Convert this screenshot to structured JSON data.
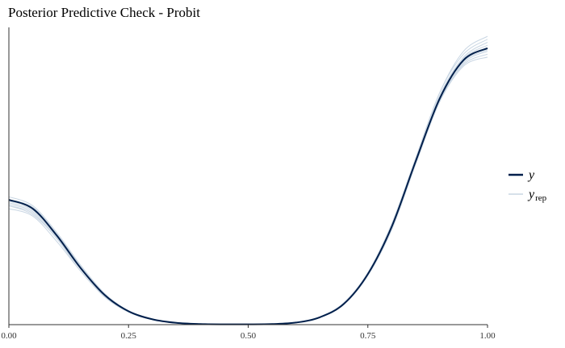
{
  "chart_data": {
    "type": "line",
    "title": "Posterior Predictive Check - Probit",
    "xlabel": "",
    "ylabel": "",
    "xlim": [
      0,
      1
    ],
    "ylim": [
      0,
      1.0
    ],
    "x_ticks": [
      "0.00",
      "0.25",
      "0.50",
      "0.75",
      "1.00"
    ],
    "y_axis_ticks_shown": false,
    "grid": false,
    "legend_position": "right",
    "colors": {
      "y": "#011f4b",
      "yrep": "#c9d6e3"
    },
    "x": [
      0,
      0.05,
      0.1,
      0.15,
      0.2,
      0.25,
      0.3,
      0.35,
      0.4,
      0.45,
      0.5,
      0.55,
      0.6,
      0.65,
      0.7,
      0.75,
      0.8,
      0.85,
      0.9,
      0.95,
      1.0
    ],
    "series": [
      {
        "name": "y",
        "role": "observed",
        "values": [
          0.42,
          0.39,
          0.3,
          0.19,
          0.1,
          0.045,
          0.018,
          0.006,
          0.002,
          0.001,
          0.001,
          0.002,
          0.007,
          0.025,
          0.07,
          0.17,
          0.33,
          0.55,
          0.76,
          0.89,
          0.93
        ]
      },
      {
        "name": "y_rep",
        "role": "replicated",
        "draws": [
          [
            0.43,
            0.4,
            0.31,
            0.2,
            0.105,
            0.047,
            0.019,
            0.006,
            0.002,
            0.001,
            0.001,
            0.002,
            0.007,
            0.024,
            0.068,
            0.165,
            0.32,
            0.54,
            0.75,
            0.88,
            0.92
          ],
          [
            0.4,
            0.37,
            0.29,
            0.18,
            0.095,
            0.043,
            0.017,
            0.006,
            0.002,
            0.001,
            0.001,
            0.002,
            0.008,
            0.027,
            0.074,
            0.175,
            0.34,
            0.56,
            0.78,
            0.91,
            0.96
          ],
          [
            0.41,
            0.385,
            0.3,
            0.195,
            0.1,
            0.046,
            0.018,
            0.006,
            0.002,
            0.001,
            0.001,
            0.002,
            0.007,
            0.025,
            0.071,
            0.17,
            0.33,
            0.55,
            0.77,
            0.9,
            0.95
          ],
          [
            0.39,
            0.365,
            0.28,
            0.18,
            0.093,
            0.042,
            0.017,
            0.005,
            0.002,
            0.001,
            0.001,
            0.002,
            0.007,
            0.025,
            0.07,
            0.17,
            0.33,
            0.55,
            0.75,
            0.87,
            0.9
          ],
          [
            0.42,
            0.395,
            0.305,
            0.198,
            0.103,
            0.046,
            0.018,
            0.006,
            0.002,
            0.001,
            0.001,
            0.002,
            0.007,
            0.026,
            0.072,
            0.172,
            0.335,
            0.56,
            0.78,
            0.92,
            0.97
          ],
          [
            0.4,
            0.375,
            0.29,
            0.188,
            0.097,
            0.044,
            0.017,
            0.006,
            0.002,
            0.001,
            0.001,
            0.002,
            0.007,
            0.024,
            0.069,
            0.168,
            0.325,
            0.545,
            0.755,
            0.875,
            0.91
          ],
          [
            0.415,
            0.39,
            0.303,
            0.193,
            0.101,
            0.045,
            0.018,
            0.006,
            0.002,
            0.001,
            0.001,
            0.002,
            0.007,
            0.025,
            0.071,
            0.171,
            0.332,
            0.552,
            0.765,
            0.895,
            0.94
          ],
          [
            0.405,
            0.38,
            0.295,
            0.19,
            0.099,
            0.045,
            0.018,
            0.006,
            0.002,
            0.001,
            0.001,
            0.002,
            0.007,
            0.025,
            0.07,
            0.169,
            0.328,
            0.548,
            0.76,
            0.885,
            0.925
          ]
        ]
      }
    ]
  },
  "legend": {
    "y_label": "y",
    "yrep_label": "y",
    "yrep_subscript": "rep"
  }
}
